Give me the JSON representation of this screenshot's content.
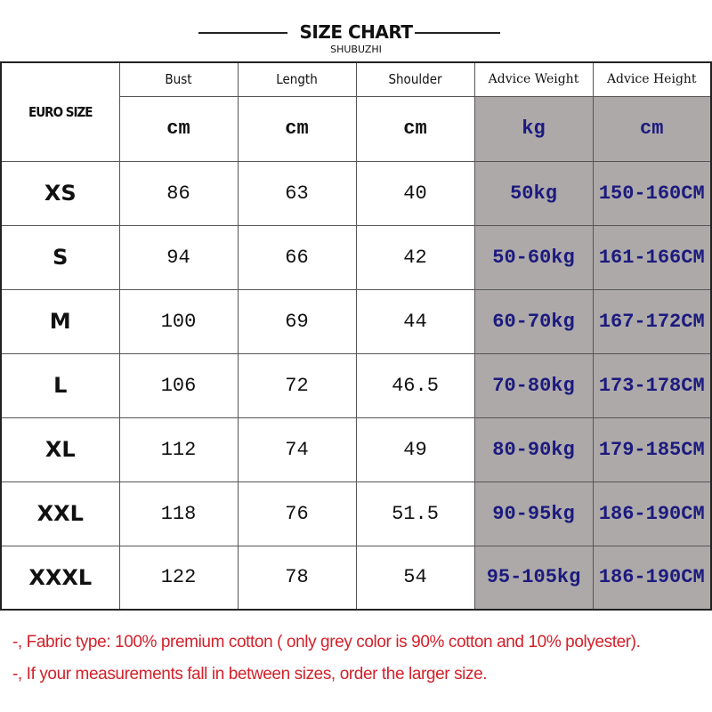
{
  "header": {
    "title": "SIZE CHART",
    "brand": "SHUBUZHI"
  },
  "table": {
    "size_label": "EURO SIZE",
    "columns": [
      {
        "label": "Bust",
        "unit": "cm"
      },
      {
        "label": "Length",
        "unit": "cm"
      },
      {
        "label": "Shoulder",
        "unit": "cm"
      },
      {
        "label": "Advice Weight",
        "unit": "kg"
      },
      {
        "label": "Advice Height",
        "unit": "cm"
      }
    ],
    "rows": [
      [
        "XS",
        "86",
        "63",
        "40",
        "50kg",
        "150-160CM"
      ],
      [
        "S",
        "94",
        "66",
        "42",
        "50-60kg",
        "161-166CM"
      ],
      [
        "M",
        "100",
        "69",
        "44",
        "60-70kg",
        "167-172CM"
      ],
      [
        "L",
        "106",
        "72",
        "46.5",
        "70-80kg",
        "173-178CM"
      ],
      [
        "XL",
        "112",
        "74",
        "49",
        "80-90kg",
        "179-185CM"
      ],
      [
        "XXL",
        "118",
        "76",
        "51.5",
        "90-95kg",
        "186-190CM"
      ],
      [
        "XXXL",
        "122",
        "78",
        "54",
        "95-105kg",
        "186-190CM"
      ]
    ],
    "highlight_color": "#ada9a9",
    "highlight_text_color": "#1c1a7e"
  },
  "notes": [
    "-, Fabric type: 100% premium cotton ( only grey color is 90% cotton and 10% polyester).",
    "-, If your measurements fall in between sizes, order the larger size."
  ]
}
